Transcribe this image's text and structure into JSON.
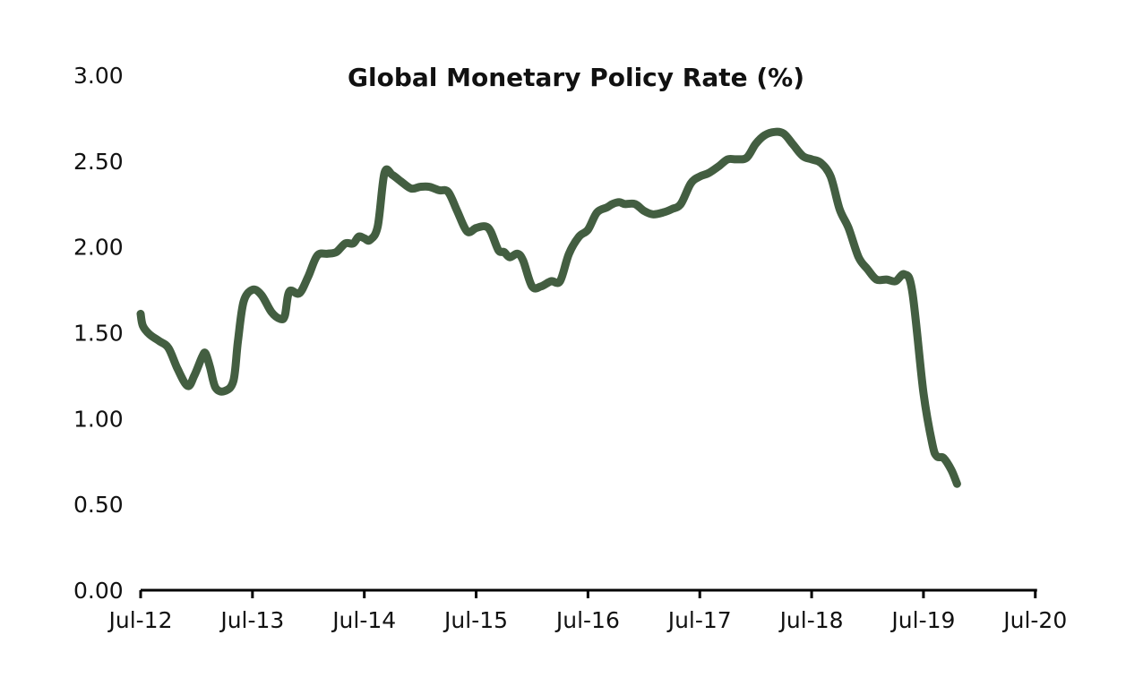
{
  "chart_data": {
    "type": "line",
    "title": "Global Monetary Policy Rate (%)",
    "xlabel": "",
    "ylabel": "",
    "ylim": [
      0,
      3
    ],
    "xlim": [
      2012.5,
      2020.55
    ],
    "y_ticks": [
      "0.00",
      "0.50",
      "1.00",
      "1.50",
      "2.00",
      "2.50",
      "3.00"
    ],
    "x_ticks": [
      {
        "label": "Jul-12",
        "t": 2012.5
      },
      {
        "label": "Jul-13",
        "t": 2013.5
      },
      {
        "label": "Jul-14",
        "t": 2014.5
      },
      {
        "label": "Jul-15",
        "t": 2015.5
      },
      {
        "label": "Jul-16",
        "t": 2016.5
      },
      {
        "label": "Jul-17",
        "t": 2017.5
      },
      {
        "label": "Jul-18",
        "t": 2018.5
      },
      {
        "label": "Jul-19",
        "t": 2019.5
      },
      {
        "label": "Jul-20",
        "t": 2020.5
      }
    ],
    "grid": false,
    "legend": "none",
    "series": [
      {
        "color": "#435e41",
        "points": [
          [
            2012.5,
            1.61
          ],
          [
            2012.52,
            1.54
          ],
          [
            2012.58,
            1.49
          ],
          [
            2012.67,
            1.45
          ],
          [
            2012.75,
            1.41
          ],
          [
            2012.83,
            1.29
          ],
          [
            2012.92,
            1.19
          ],
          [
            2012.98,
            1.25
          ],
          [
            2013.05,
            1.36
          ],
          [
            2013.08,
            1.38
          ],
          [
            2013.12,
            1.3
          ],
          [
            2013.17,
            1.18
          ],
          [
            2013.25,
            1.16
          ],
          [
            2013.33,
            1.22
          ],
          [
            2013.37,
            1.45
          ],
          [
            2013.42,
            1.68
          ],
          [
            2013.5,
            1.75
          ],
          [
            2013.58,
            1.72
          ],
          [
            2013.67,
            1.62
          ],
          [
            2013.75,
            1.58
          ],
          [
            2013.79,
            1.6
          ],
          [
            2013.83,
            1.74
          ],
          [
            2013.92,
            1.73
          ],
          [
            2014.0,
            1.83
          ],
          [
            2014.08,
            1.95
          ],
          [
            2014.17,
            1.96
          ],
          [
            2014.25,
            1.97
          ],
          [
            2014.33,
            2.02
          ],
          [
            2014.4,
            2.02
          ],
          [
            2014.45,
            2.06
          ],
          [
            2014.5,
            2.05
          ],
          [
            2014.55,
            2.04
          ],
          [
            2014.62,
            2.12
          ],
          [
            2014.68,
            2.43
          ],
          [
            2014.75,
            2.42
          ],
          [
            2014.83,
            2.38
          ],
          [
            2014.92,
            2.34
          ],
          [
            2015.0,
            2.35
          ],
          [
            2015.08,
            2.35
          ],
          [
            2015.17,
            2.33
          ],
          [
            2015.25,
            2.32
          ],
          [
            2015.33,
            2.21
          ],
          [
            2015.42,
            2.09
          ],
          [
            2015.5,
            2.11
          ],
          [
            2015.58,
            2.12
          ],
          [
            2015.63,
            2.09
          ],
          [
            2015.7,
            1.98
          ],
          [
            2015.75,
            1.97
          ],
          [
            2015.8,
            1.94
          ],
          [
            2015.87,
            1.96
          ],
          [
            2015.92,
            1.92
          ],
          [
            2016.0,
            1.77
          ],
          [
            2016.08,
            1.77
          ],
          [
            2016.17,
            1.8
          ],
          [
            2016.25,
            1.8
          ],
          [
            2016.33,
            1.96
          ],
          [
            2016.42,
            2.06
          ],
          [
            2016.5,
            2.1
          ],
          [
            2016.58,
            2.2
          ],
          [
            2016.67,
            2.23
          ],
          [
            2016.72,
            2.25
          ],
          [
            2016.78,
            2.26
          ],
          [
            2016.83,
            2.25
          ],
          [
            2016.92,
            2.25
          ],
          [
            2017.0,
            2.21
          ],
          [
            2017.08,
            2.19
          ],
          [
            2017.17,
            2.2
          ],
          [
            2017.25,
            2.22
          ],
          [
            2017.33,
            2.25
          ],
          [
            2017.42,
            2.37
          ],
          [
            2017.5,
            2.41
          ],
          [
            2017.58,
            2.43
          ],
          [
            2017.67,
            2.47
          ],
          [
            2017.75,
            2.51
          ],
          [
            2017.83,
            2.51
          ],
          [
            2017.92,
            2.52
          ],
          [
            2018.0,
            2.6
          ],
          [
            2018.08,
            2.65
          ],
          [
            2018.17,
            2.67
          ],
          [
            2018.25,
            2.66
          ],
          [
            2018.33,
            2.6
          ],
          [
            2018.42,
            2.53
          ],
          [
            2018.5,
            2.51
          ],
          [
            2018.58,
            2.49
          ],
          [
            2018.67,
            2.41
          ],
          [
            2018.75,
            2.22
          ],
          [
            2018.83,
            2.11
          ],
          [
            2018.92,
            1.94
          ],
          [
            2019.0,
            1.87
          ],
          [
            2019.08,
            1.81
          ],
          [
            2019.17,
            1.81
          ],
          [
            2019.25,
            1.8
          ],
          [
            2019.33,
            1.84
          ],
          [
            2019.4,
            1.74
          ],
          [
            2019.5,
            1.15
          ],
          [
            2019.58,
            0.85
          ],
          [
            2019.62,
            0.78
          ],
          [
            2019.68,
            0.77
          ],
          [
            2019.75,
            0.7
          ],
          [
            2019.8,
            0.62
          ]
        ]
      }
    ]
  }
}
